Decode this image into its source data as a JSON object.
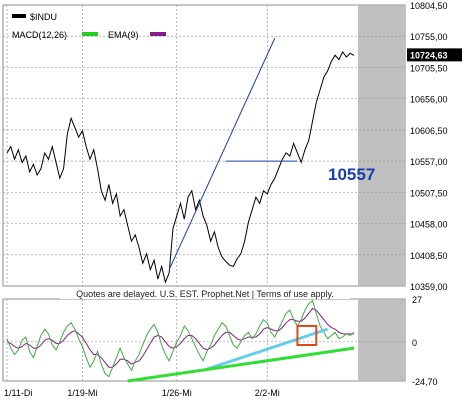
{
  "chart_data": [
    {
      "type": "line",
      "panel": "price",
      "legend": [
        {
          "label": "$INDU",
          "color": "#000000"
        },
        {
          "label": "MACD(12,26)",
          "color": "#22cc22"
        },
        {
          "label": "EMA(9)",
          "color": "#8a1a8a"
        }
      ],
      "y_ticks": [
        "10804,50",
        "10755,00",
        "10705,50",
        "10656,00",
        "10606,50",
        "10557,00",
        "10507,50",
        "10458,00",
        "10408,50",
        "10359,00"
      ],
      "last_price_label": "10724,63",
      "last_price": 10724.63,
      "annotation": "10557",
      "annotation_color": "#1a3fa8",
      "ylim": [
        10359,
        10804.5
      ],
      "grid": true,
      "shaded_future_region": true,
      "shade_color": "#c0c0c0",
      "series": [
        {
          "name": "$INDU",
          "color": "#000000",
          "values": [
            10570,
            10580,
            10560,
            10575,
            10555,
            10565,
            10540,
            10552,
            10535,
            10545,
            10570,
            10560,
            10580,
            10555,
            10530,
            10545,
            10600,
            10625,
            10610,
            10595,
            10605,
            10580,
            10560,
            10575,
            10545,
            10510,
            10495,
            10520,
            10490,
            10505,
            10470,
            10480,
            10455,
            10430,
            10440,
            10420,
            10395,
            10410,
            10385,
            10400,
            10370,
            10390,
            10365,
            10380,
            10450,
            10470,
            10490,
            10465,
            10500,
            10510,
            10480,
            10495,
            10470,
            10455,
            10430,
            10445,
            10420,
            10405,
            10398,
            10392,
            10390,
            10402,
            10410,
            10430,
            10460,
            10480,
            10500,
            10490,
            10510,
            10505,
            10520,
            10530,
            10545,
            10560,
            10570,
            10565,
            10585,
            10570,
            10555,
            10575,
            10590,
            10620,
            10650,
            10670,
            10690,
            10700,
            10715,
            10725,
            10718,
            10730,
            10722,
            10728,
            10724.63
          ]
        }
      ],
      "overlays": [
        {
          "label": "uptrend-line",
          "color": "#1a3fa8",
          "x": [
            43,
            71
          ],
          "y": [
            10385,
            10752
          ]
        },
        {
          "label": "support-line-10557",
          "color": "#1a3fa8",
          "x": [
            58,
            77
          ],
          "y": [
            10557,
            10557
          ]
        }
      ]
    },
    {
      "type": "line",
      "panel": "macd",
      "y_ticks": [
        "27",
        "0",
        "-24,70"
      ],
      "ylim": [
        -24.7,
        27
      ],
      "grid": true,
      "series": [
        {
          "name": "MACD(12,26)",
          "color": "#000000",
          "values": [
            2,
            -4,
            -8,
            -5,
            1,
            3,
            -6,
            -10,
            -3,
            4,
            8,
            5,
            -2,
            -5,
            0,
            6,
            10,
            12,
            8,
            2,
            -3,
            -10,
            -16,
            -12,
            -6,
            -14,
            -20,
            -22,
            -16,
            -10,
            -4,
            -10,
            -14,
            -18,
            -12,
            -8,
            -2,
            4,
            8,
            11,
            6,
            -2,
            -8,
            -12,
            -6,
            0,
            4,
            10,
            7,
            2,
            -3,
            -8,
            -12,
            -6,
            -2,
            4,
            8,
            12,
            10,
            4,
            -2,
            -4,
            0,
            4,
            6,
            2,
            5,
            10,
            14,
            12,
            6,
            3,
            8,
            13,
            18,
            20,
            14,
            10,
            14,
            20,
            24,
            26,
            18,
            10,
            6,
            2,
            4,
            6,
            2,
            3,
            5,
            4,
            6
          ]
        },
        {
          "name": "EMA(9)",
          "color": "#8a1a8a",
          "values": [
            0,
            -1,
            -3,
            -4,
            -3,
            -1,
            -2,
            -4,
            -4,
            -2,
            1,
            2,
            1,
            -1,
            -1,
            1,
            4,
            6,
            7,
            5,
            3,
            -1,
            -5,
            -8,
            -8,
            -10,
            -13,
            -16,
            -16,
            -14,
            -11,
            -11,
            -12,
            -14,
            -13,
            -12,
            -9,
            -5,
            -1,
            3,
            4,
            3,
            0,
            -3,
            -4,
            -3,
            -1,
            2,
            4,
            4,
            2,
            -1,
            -4,
            -5,
            -4,
            -2,
            1,
            4,
            6,
            6,
            4,
            2,
            1,
            2,
            3,
            3,
            3,
            5,
            8,
            9,
            8,
            7,
            7,
            9,
            12,
            14,
            14,
            13,
            13,
            15,
            18,
            21,
            20,
            17,
            14,
            11,
            9,
            8,
            6,
            5,
            5,
            5,
            5
          ]
        }
      ],
      "overlays": [
        {
          "label": "cyan-trendline",
          "color": "#66ccee",
          "x": [
            52,
            85
          ],
          "y": [
            -18,
            8
          ]
        },
        {
          "label": "green-trendline",
          "color": "#33dd33",
          "x": [
            32,
            92
          ],
          "y": [
            -24.7,
            -4
          ]
        },
        {
          "label": "highlight-box",
          "color": "#dd4a1a",
          "x": [
            77,
            82
          ],
          "y": [
            -2,
            10
          ]
        }
      ]
    }
  ],
  "delay_notice": "Quotes are delayed. U.S. EST. Prophet.Net | Terms of use apply.",
  "x_ticks": [
    {
      "label": "1/11-Di",
      "index": 0
    },
    {
      "label": "1/19-Mi",
      "index": 20
    },
    {
      "label": "1/26-Mi",
      "index": 45
    },
    {
      "label": "2/2-Mi",
      "index": 69
    }
  ]
}
